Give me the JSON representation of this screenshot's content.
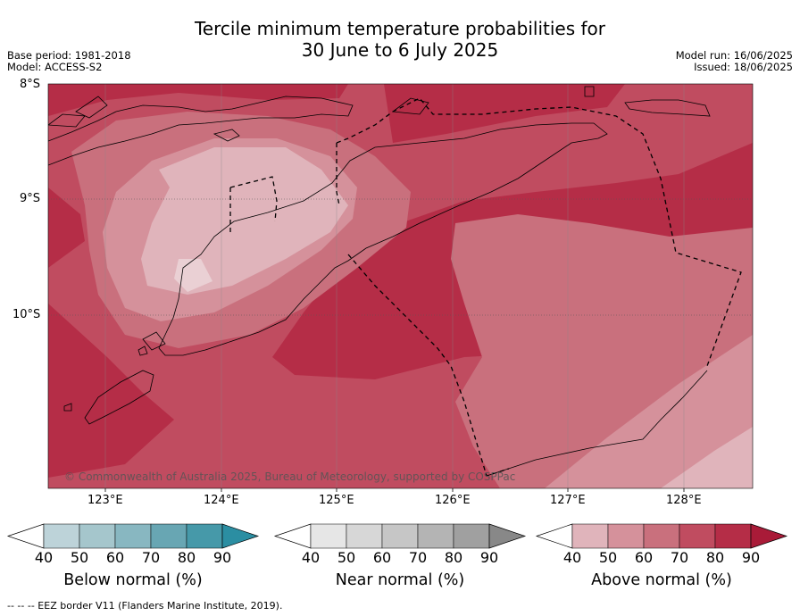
{
  "title": {
    "line1": "Tercile minimum temperature probabilities for",
    "line2": "30 June to 6 July 2025"
  },
  "meta": {
    "base_period": "Base period: 1981-2018",
    "model": "Model: ACCESS-S2",
    "model_run": "Model run: 16/06/2025",
    "issued": "Issued: 18/06/2025"
  },
  "map": {
    "lat_labels": [
      "8°S",
      "9°S",
      "10°S"
    ],
    "lon_labels": [
      "123°E",
      "124°E",
      "125°E",
      "126°E",
      "127°E",
      "128°E"
    ],
    "copyright": "© Commonwealth of Australia 2025, Bureau of Meteorology, supported by COSPPac",
    "dominant_category": "Above normal",
    "probability_bands_percent": [
      60,
      70,
      80
    ]
  },
  "colorbars": [
    {
      "label": "Below normal (%)",
      "ticks": [
        "40",
        "50",
        "60",
        "70",
        "80",
        "90"
      ],
      "colors": [
        "#ffffff",
        "#bdd3d9",
        "#a5c6cc",
        "#88b7c1",
        "#68a6b3",
        "#4699a9",
        "#2b8ea2"
      ]
    },
    {
      "label": "Near normal (%)",
      "ticks": [
        "40",
        "50",
        "60",
        "70",
        "80",
        "90"
      ],
      "colors": [
        "#ffffff",
        "#e6e6e6",
        "#d7d7d7",
        "#c6c6c6",
        "#b4b4b4",
        "#a0a0a0",
        "#888888"
      ]
    },
    {
      "label": "Above normal (%)",
      "ticks": [
        "40",
        "50",
        "60",
        "70",
        "80",
        "90"
      ],
      "colors": [
        "#ffffff",
        "#e0b4bb",
        "#d5919b",
        "#c9707d",
        "#c04c60",
        "#b52d47",
        "#a91b38"
      ]
    }
  ],
  "footnote": "--  --  -- EEZ border V11 (Flanders Marine Institute, 2019)."
}
